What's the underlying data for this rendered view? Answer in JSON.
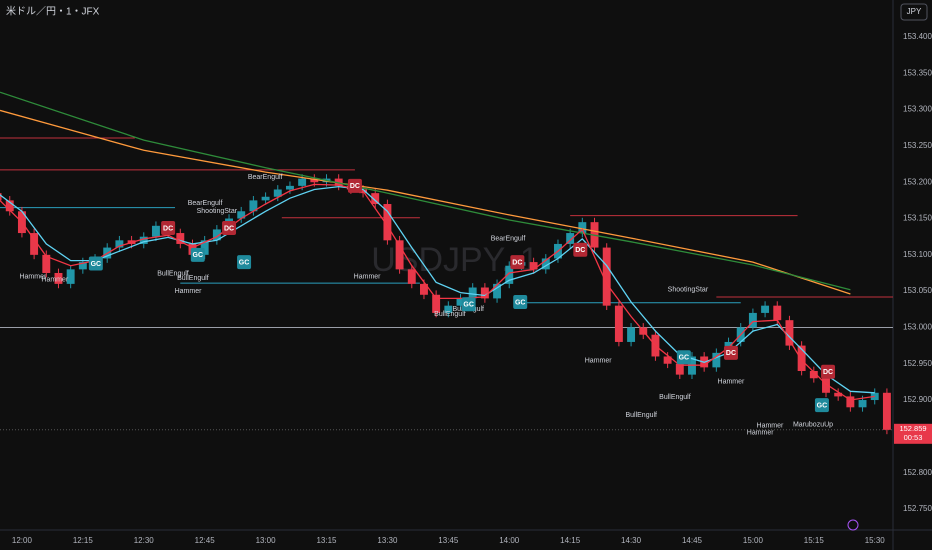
{
  "chart_data": {
    "type": "candlestick",
    "title": "米ドル／円・1・JFX",
    "watermark": "USDJPY, 1",
    "currency": "JPY",
    "up_color": "#2196a8",
    "down_color": "#e8384a",
    "xlim": [
      -5.4,
      214.5
    ],
    "ylim": [
      152.721,
      153.451
    ],
    "yticks": [
      {
        "value": 153.4,
        "label": "153.400"
      },
      {
        "value": 153.35,
        "label": "153.350"
      },
      {
        "value": 153.3,
        "label": "153.300"
      },
      {
        "value": 153.25,
        "label": "153.250"
      },
      {
        "value": 153.2,
        "label": "153.200"
      },
      {
        "value": 153.15,
        "label": "153.150"
      },
      {
        "value": 153.1,
        "label": "153.100"
      },
      {
        "value": 153.05,
        "label": "153.050"
      },
      {
        "value": 153.0,
        "label": "153.000"
      },
      {
        "value": 152.95,
        "label": "152.950"
      },
      {
        "value": 152.9,
        "label": "152.900"
      },
      {
        "value": 152.85,
        "label": "152.850"
      },
      {
        "value": 152.8,
        "label": "152.800"
      },
      {
        "value": 152.75,
        "label": "152.750"
      }
    ],
    "xticks": [
      {
        "value": 0,
        "label": "12:00"
      },
      {
        "value": 15,
        "label": "12:15"
      },
      {
        "value": 30,
        "label": "12:30"
      },
      {
        "value": 45,
        "label": "12:45"
      },
      {
        "value": 60,
        "label": "13:00"
      },
      {
        "value": 75,
        "label": "13:15"
      },
      {
        "value": 90,
        "label": "13:30"
      },
      {
        "value": 105,
        "label": "13:45"
      },
      {
        "value": 120,
        "label": "14:00"
      },
      {
        "value": 135,
        "label": "14:15"
      },
      {
        "value": 150,
        "label": "14:30"
      },
      {
        "value": 165,
        "label": "14:45"
      },
      {
        "value": 180,
        "label": "15:00"
      },
      {
        "value": 195,
        "label": "15:15"
      },
      {
        "value": 210,
        "label": "15:30"
      }
    ],
    "x": [
      -6,
      -3,
      0,
      3,
      6,
      9,
      12,
      15,
      18,
      21,
      24,
      27,
      30,
      33,
      36,
      39,
      42,
      45,
      48,
      51,
      54,
      57,
      60,
      63,
      66,
      69,
      72,
      75,
      78,
      81,
      84,
      87,
      90,
      93,
      96,
      99,
      102,
      105,
      108,
      111,
      114,
      117,
      120,
      123,
      126,
      129,
      132,
      135,
      138,
      141,
      144,
      147,
      150,
      153,
      156,
      159,
      162,
      165,
      168,
      171,
      174,
      177,
      180,
      183,
      186,
      189,
      192,
      195,
      198,
      201,
      204,
      207,
      210,
      213
    ],
    "open": [
      153.185,
      153.175,
      153.16,
      153.13,
      153.1,
      153.075,
      153.06,
      153.08,
      153.09,
      153.095,
      153.11,
      153.12,
      153.115,
      153.125,
      153.14,
      153.13,
      153.115,
      153.1,
      153.12,
      153.135,
      153.15,
      153.16,
      153.175,
      153.18,
      153.19,
      153.195,
      153.205,
      153.2,
      153.205,
      153.195,
      153.19,
      153.185,
      153.17,
      153.12,
      153.08,
      153.06,
      153.045,
      153.02,
      153.03,
      153.04,
      153.055,
      153.04,
      153.06,
      153.085,
      153.09,
      153.08,
      153.095,
      153.115,
      153.13,
      153.145,
      153.11,
      153.03,
      152.98,
      153.0,
      152.99,
      152.96,
      152.95,
      152.935,
      152.96,
      152.945,
      152.965,
      152.98,
      153.0,
      153.02,
      153.03,
      153.01,
      152.975,
      152.94,
      152.93,
      152.91,
      152.905,
      152.89,
      152.9,
      152.91
    ],
    "high": [
      153.191,
      153.181,
      153.166,
      153.136,
      153.106,
      153.081,
      153.086,
      153.096,
      153.101,
      153.116,
      153.126,
      153.126,
      153.131,
      153.146,
      153.146,
      153.136,
      153.121,
      153.126,
      153.141,
      153.156,
      153.166,
      153.181,
      153.186,
      153.196,
      153.201,
      153.211,
      153.211,
      153.211,
      153.211,
      153.201,
      153.196,
      153.191,
      153.176,
      153.126,
      153.086,
      153.066,
      153.051,
      153.036,
      153.046,
      153.061,
      153.061,
      153.066,
      153.091,
      153.096,
      153.096,
      153.101,
      153.121,
      153.136,
      153.151,
      153.151,
      153.116,
      153.036,
      153.006,
      153.006,
      152.996,
      152.966,
      152.956,
      152.966,
      152.966,
      152.971,
      152.986,
      153.006,
      153.026,
      153.036,
      153.036,
      153.016,
      152.981,
      152.946,
      152.936,
      152.916,
      152.911,
      152.906,
      152.916,
      152.916
    ],
    "low": [
      153.169,
      153.154,
      153.124,
      153.094,
      153.069,
      153.054,
      153.054,
      153.074,
      153.084,
      153.089,
      153.104,
      153.109,
      153.109,
      153.119,
      153.124,
      153.109,
      153.094,
      153.094,
      153.114,
      153.129,
      153.144,
      153.154,
      153.169,
      153.174,
      153.184,
      153.189,
      153.194,
      153.194,
      153.189,
      153.184,
      153.179,
      153.164,
      153.114,
      153.074,
      153.054,
      153.039,
      153.014,
      153.014,
      153.024,
      153.034,
      153.034,
      153.034,
      153.054,
      153.079,
      153.074,
      153.074,
      153.089,
      153.109,
      153.124,
      153.104,
      153.024,
      152.974,
      152.974,
      152.984,
      152.954,
      152.944,
      152.929,
      152.929,
      152.939,
      152.939,
      152.959,
      152.974,
      152.994,
      153.014,
      153.004,
      152.969,
      152.934,
      152.924,
      152.904,
      152.899,
      152.884,
      152.884,
      152.894,
      152.853
    ],
    "close": [
      153.175,
      153.16,
      153.13,
      153.1,
      153.075,
      153.06,
      153.08,
      153.09,
      153.095,
      153.11,
      153.12,
      153.115,
      153.125,
      153.14,
      153.13,
      153.115,
      153.1,
      153.12,
      153.135,
      153.15,
      153.16,
      153.175,
      153.18,
      153.19,
      153.195,
      153.205,
      153.2,
      153.205,
      153.195,
      153.19,
      153.185,
      153.17,
      153.12,
      153.08,
      153.06,
      153.045,
      153.02,
      153.03,
      153.04,
      153.055,
      153.04,
      153.06,
      153.085,
      153.09,
      153.08,
      153.095,
      153.115,
      153.13,
      153.145,
      153.11,
      153.03,
      152.98,
      153.0,
      152.99,
      152.96,
      152.95,
      152.935,
      152.96,
      152.945,
      152.965,
      152.98,
      153.0,
      153.02,
      153.03,
      153.01,
      152.975,
      152.94,
      152.93,
      152.91,
      152.905,
      152.89,
      152.9,
      152.91,
      152.859
    ],
    "lines": [
      {
        "color": "#ff9a3c",
        "x": [
          -5.4,
          30,
          60,
          90,
          120,
          150,
          180,
          204
        ],
        "values": [
          153.299,
          153.244,
          153.214,
          153.189,
          153.155,
          153.123,
          153.09,
          153.046
        ]
      },
      {
        "color": "#2e8b3a",
        "x": [
          -5.4,
          30,
          60,
          90,
          120,
          150,
          180,
          204
        ],
        "values": [
          153.324,
          153.258,
          153.22,
          153.185,
          153.148,
          153.118,
          153.086,
          153.052
        ]
      },
      {
        "color": "#5fd3f3",
        "x": [
          -6,
          0,
          6,
          12,
          18,
          24,
          30,
          36,
          42,
          48,
          54,
          60,
          66,
          72,
          78,
          84,
          90,
          96,
          102,
          108,
          114,
          120,
          126,
          132,
          138,
          144,
          150,
          156,
          162,
          168,
          174,
          180,
          186,
          192,
          198,
          204,
          210
        ],
        "values": [
          153.185,
          153.16,
          153.115,
          153.092,
          153.092,
          153.105,
          153.118,
          153.124,
          153.115,
          153.12,
          153.14,
          153.16,
          153.178,
          153.19,
          153.194,
          153.19,
          153.16,
          153.11,
          153.062,
          153.048,
          153.044,
          153.065,
          153.075,
          153.095,
          153.122,
          153.085,
          153.035,
          152.995,
          152.962,
          152.952,
          152.965,
          152.995,
          153.004,
          152.97,
          152.935,
          152.912,
          152.91
        ]
      },
      {
        "color": "#f23645",
        "x": [
          -6,
          0,
          6,
          12,
          18,
          24,
          30,
          36,
          42,
          48,
          54,
          60,
          66,
          72,
          78,
          84,
          90,
          96,
          102,
          108,
          114,
          120,
          126,
          132,
          138,
          144,
          150,
          156,
          162,
          168,
          174,
          180,
          186,
          192,
          198,
          204,
          210
        ],
        "values": [
          153.178,
          153.145,
          153.098,
          153.085,
          153.092,
          153.112,
          153.122,
          153.127,
          153.11,
          153.125,
          153.15,
          153.17,
          153.188,
          153.197,
          153.196,
          153.188,
          153.14,
          153.085,
          153.04,
          153.04,
          153.042,
          153.075,
          153.08,
          153.105,
          153.135,
          153.06,
          153.015,
          152.975,
          152.948,
          152.948,
          152.972,
          153.008,
          153.01,
          152.955,
          152.922,
          152.9,
          152.905
        ]
      }
    ],
    "levels": [
      {
        "value": 153.261,
        "color": "#c2313d",
        "x": [
          -5.4,
          27.8
        ]
      },
      {
        "value": 153.217,
        "color": "#c2313d",
        "x": [
          -5.4,
          82
        ]
      },
      {
        "value": 153.165,
        "color": "#2a9fbd",
        "x": [
          -5.4,
          37.7
        ]
      },
      {
        "value": 153.151,
        "color": "#c2313d",
        "x": [
          64,
          98
        ]
      },
      {
        "value": 153.061,
        "color": "#2a9fbd",
        "x": [
          39,
          98
        ]
      },
      {
        "value": 153.154,
        "color": "#c2313d",
        "x": [
          135,
          191
        ]
      },
      {
        "value": 153.034,
        "color": "#2a9fbd",
        "x": [
          123,
          177
        ]
      },
      {
        "value": 153.042,
        "color": "#c2313d",
        "x": [
          171,
          214.5
        ]
      },
      {
        "value": 153.0,
        "color": "#9a9ea8",
        "x": [
          -5.4,
          214.5
        ]
      }
    ],
    "signals": [
      {
        "label": "GC",
        "x": 18.2,
        "value": 153.088
      },
      {
        "label": "GC",
        "x": 43.3,
        "value": 153.1
      },
      {
        "label": "GC",
        "x": 54.7,
        "value": 153.09
      },
      {
        "label": "GC",
        "x": 110,
        "value": 153.032
      },
      {
        "label": "GC",
        "x": 122.7,
        "value": 153.035
      },
      {
        "label": "GC",
        "x": 163,
        "value": 152.959
      },
      {
        "label": "GC",
        "x": 197,
        "value": 152.893
      },
      {
        "label": "DC",
        "x": 36,
        "value": 153.137
      },
      {
        "label": "DC",
        "x": 51,
        "value": 153.137
      },
      {
        "label": "DC",
        "x": 82,
        "value": 153.195
      },
      {
        "label": "DC",
        "x": 122,
        "value": 153.09
      },
      {
        "label": "DC",
        "x": 137.5,
        "value": 153.107
      },
      {
        "label": "DC",
        "x": 174.6,
        "value": 152.965
      },
      {
        "label": "DC",
        "x": 198.5,
        "value": 152.939
      }
    ],
    "patterns": [
      {
        "label": "Hammer",
        "x": 2.7,
        "value": 153.07
      },
      {
        "label": "Hammer",
        "x": 8.1,
        "value": 153.066
      },
      {
        "label": "BullEngulf",
        "x": 37.2,
        "value": 153.074
      },
      {
        "label": "BullEngulf",
        "x": 42.1,
        "value": 153.068
      },
      {
        "label": "Hammer",
        "x": 40.9,
        "value": 153.05
      },
      {
        "label": "BearEngulf",
        "x": 45.1,
        "value": 153.171
      },
      {
        "label": "ShootingStar",
        "x": 48,
        "value": 153.16
      },
      {
        "label": "BearEngulf",
        "x": 59.9,
        "value": 153.207
      },
      {
        "label": "Hammer",
        "x": 85,
        "value": 153.07
      },
      {
        "label": "BullEngulf",
        "x": 105.4,
        "value": 153.018
      },
      {
        "label": "BullEngulf",
        "x": 109.9,
        "value": 153.025
      },
      {
        "label": "BearEngulf",
        "x": 119.7,
        "value": 153.122
      },
      {
        "label": "ShootingStar",
        "x": 164,
        "value": 153.052
      },
      {
        "label": "Hammer",
        "x": 141.9,
        "value": 152.954
      },
      {
        "label": "BullEngulf",
        "x": 160.8,
        "value": 152.904
      },
      {
        "label": "BullEngulf",
        "x": 152.5,
        "value": 152.879
      },
      {
        "label": "Hammer",
        "x": 174.6,
        "value": 152.925
      },
      {
        "label": "Hammer",
        "x": 184.2,
        "value": 152.865
      },
      {
        "label": "Hammer",
        "x": 181.8,
        "value": 152.855
      },
      {
        "label": "MarubozuUp",
        "x": 194.8,
        "value": 152.866
      }
    ],
    "last_price": {
      "value": 152.859,
      "label": "152.859"
    },
    "countdown": "00:53"
  }
}
